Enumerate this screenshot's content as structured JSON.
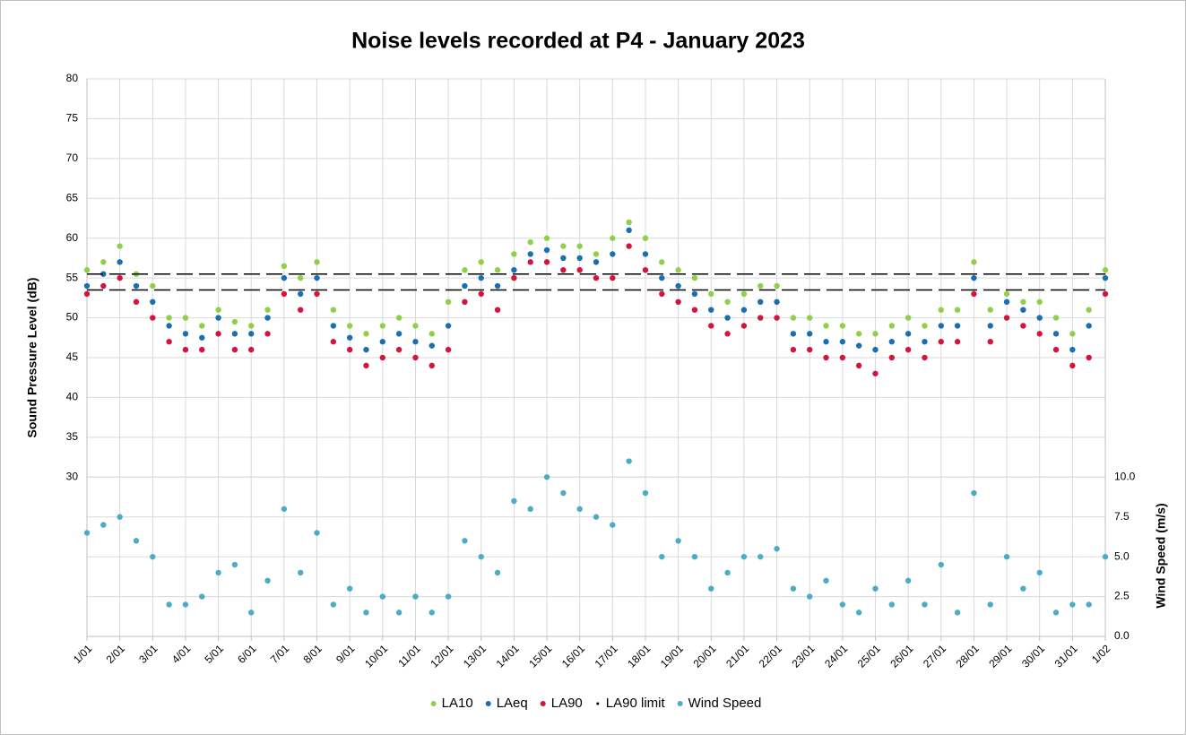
{
  "chart_data": {
    "type": "scatter",
    "title": "Noise levels recorded at P4 - January 2023",
    "y_label": "Sound Pressure Level (dB)",
    "y2_label": "Wind Speed (m/s)",
    "x": [
      1,
      1.5,
      2,
      2.5,
      3,
      3.5,
      4,
      4.5,
      5,
      5.5,
      6,
      6.5,
      7,
      7.5,
      8,
      8.5,
      9,
      9.5,
      10,
      10.5,
      11,
      11.5,
      12,
      12.5,
      13,
      13.5,
      14,
      14.5,
      15,
      15.5,
      16,
      16.5,
      17,
      17.5,
      18,
      18.5,
      19,
      19.5,
      20,
      20.5,
      21,
      21.5,
      22,
      22.5,
      23,
      23.5,
      24,
      24.5,
      25,
      25.5,
      26,
      26.5,
      27,
      27.5,
      28,
      28.5,
      29,
      29.5,
      30,
      30.5,
      31,
      31.5,
      32
    ],
    "xlim": [
      1,
      32
    ],
    "xticks": [
      {
        "value": 1,
        "label": "1/01"
      },
      {
        "value": 2,
        "label": "2/01"
      },
      {
        "value": 3,
        "label": "3/01"
      },
      {
        "value": 4,
        "label": "4/01"
      },
      {
        "value": 5,
        "label": "5/01"
      },
      {
        "value": 6,
        "label": "6/01"
      },
      {
        "value": 7,
        "label": "7/01"
      },
      {
        "value": 8,
        "label": "8/01"
      },
      {
        "value": 9,
        "label": "9/01"
      },
      {
        "value": 10,
        "label": "10/01"
      },
      {
        "value": 11,
        "label": "11/01"
      },
      {
        "value": 12,
        "label": "12/01"
      },
      {
        "value": 13,
        "label": "13/01"
      },
      {
        "value": 14,
        "label": "14/01"
      },
      {
        "value": 15,
        "label": "15/01"
      },
      {
        "value": 16,
        "label": "16/01"
      },
      {
        "value": 17,
        "label": "17/01"
      },
      {
        "value": 18,
        "label": "18/01"
      },
      {
        "value": 19,
        "label": "19/01"
      },
      {
        "value": 20,
        "label": "20/01"
      },
      {
        "value": 21,
        "label": "21/01"
      },
      {
        "value": 22,
        "label": "22/01"
      },
      {
        "value": 23,
        "label": "23/01"
      },
      {
        "value": 24,
        "label": "24/01"
      },
      {
        "value": 25,
        "label": "25/01"
      },
      {
        "value": 26,
        "label": "26/01"
      },
      {
        "value": 27,
        "label": "27/01"
      },
      {
        "value": 28,
        "label": "28/01"
      },
      {
        "value": 29,
        "label": "29/01"
      },
      {
        "value": 30,
        "label": "30/01"
      },
      {
        "value": 31,
        "label": "31/01"
      },
      {
        "value": 32,
        "label": "1/02"
      }
    ],
    "ylim": [
      10,
      80
    ],
    "yticks": [
      30,
      35,
      40,
      45,
      50,
      55,
      60,
      65,
      70,
      75,
      80
    ],
    "y2lim": [
      0,
      35
    ],
    "y2ticks": [
      {
        "value": 0,
        "label": "0.0"
      },
      {
        "value": 2.5,
        "label": "2.5"
      },
      {
        "value": 5,
        "label": "5.0"
      },
      {
        "value": 7.5,
        "label": "7.5"
      },
      {
        "value": 10,
        "label": "10.0"
      }
    ],
    "grid": true,
    "legend": "bottom",
    "series": [
      {
        "name": "LA10",
        "color": "#8fcf4a",
        "values": [
          56,
          57,
          59,
          55.5,
          54,
          50,
          50,
          49,
          51,
          49.5,
          49,
          51,
          56.5,
          55,
          57,
          51,
          49,
          48,
          49,
          50,
          49,
          48,
          52,
          56,
          57,
          56,
          58,
          59.5,
          60,
          59,
          59,
          58,
          60,
          62,
          60,
          57,
          56,
          55,
          53,
          52,
          53,
          54,
          54,
          50,
          50,
          49,
          49,
          48,
          48,
          49,
          50,
          49,
          51,
          51,
          57,
          51,
          53,
          52,
          52,
          50,
          48,
          51,
          56
        ]
      },
      {
        "name": "LAeq",
        "color": "#1a6fb0",
        "values": [
          54,
          55.5,
          57,
          54,
          52,
          49,
          48,
          47.5,
          50,
          48,
          48,
          50,
          55,
          53,
          55,
          49,
          47.5,
          46,
          47,
          48,
          47,
          46.5,
          49,
          54,
          55,
          54,
          56,
          58,
          58.5,
          57.5,
          57.5,
          57,
          58,
          61,
          58,
          55,
          54,
          53,
          51,
          50,
          51,
          52,
          52,
          48,
          48,
          47,
          47,
          46.5,
          46,
          47,
          48,
          47,
          49,
          49,
          55,
          49,
          52,
          51,
          50,
          48,
          46,
          49,
          55
        ]
      },
      {
        "name": "LA90",
        "color": "#d2143f",
        "values": [
          53,
          54,
          55,
          52,
          50,
          47,
          46,
          46,
          48,
          46,
          46,
          48,
          53,
          51,
          53,
          47,
          46,
          44,
          45,
          46,
          45,
          44,
          46,
          52,
          53,
          51,
          55,
          57,
          57,
          56,
          56,
          55,
          55,
          59,
          56,
          53,
          52,
          51,
          49,
          48,
          49,
          50,
          50,
          46,
          46,
          45,
          45,
          44,
          43,
          45,
          46,
          45,
          47,
          47,
          53,
          47,
          50,
          49,
          48,
          46,
          44,
          45,
          53
        ]
      },
      {
        "name": "LA90 limit",
        "color": "#000000",
        "style": "hline",
        "values": [
          55.5,
          53.5
        ]
      },
      {
        "name": "Wind Speed",
        "color": "#4bacc6",
        "axis": "y2",
        "values": [
          6.5,
          7,
          7.5,
          6,
          5,
          2,
          2,
          2.5,
          4,
          4.5,
          1.5,
          3.5,
          8,
          4,
          6.5,
          2,
          3,
          1.5,
          2.5,
          1.5,
          2.5,
          1.5,
          2.5,
          6,
          5,
          4,
          8.5,
          8,
          10,
          9,
          8,
          7.5,
          7,
          11,
          9,
          5,
          6,
          5,
          3,
          4,
          5,
          5,
          5.5,
          3,
          2.5,
          3.5,
          2,
          1.5,
          3,
          2,
          3.5,
          2,
          4.5,
          1.5,
          9,
          2,
          5,
          3,
          4,
          1.5,
          2,
          2,
          5
        ]
      }
    ]
  }
}
